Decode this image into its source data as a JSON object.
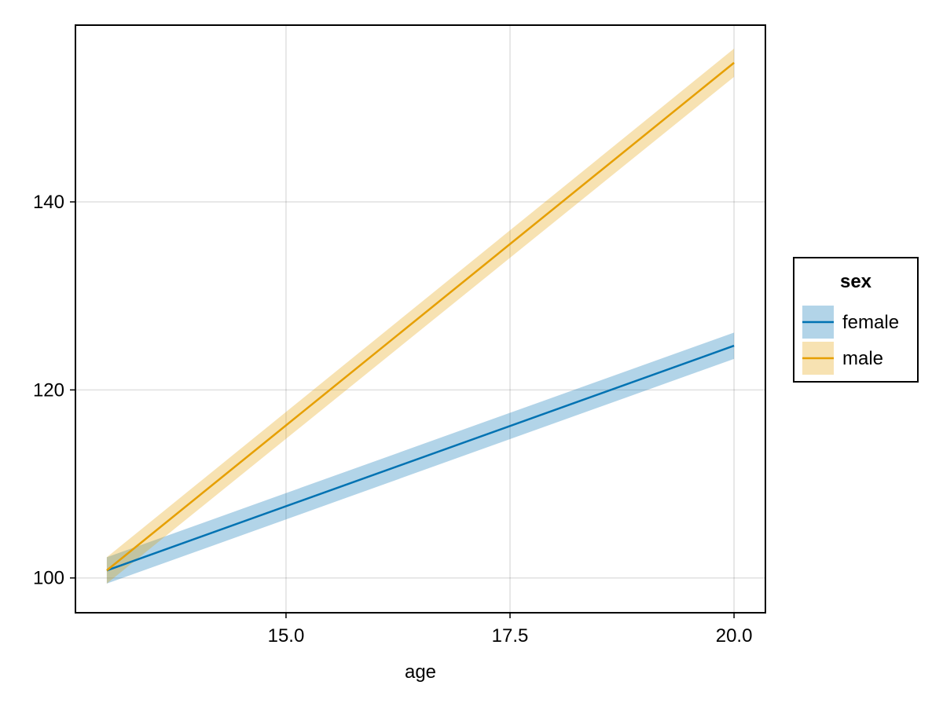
{
  "chart_data": {
    "type": "line",
    "title": "",
    "xlabel": "age",
    "ylabel": "",
    "xlim": [
      12.65,
      20.35
    ],
    "ylim": [
      96.3,
      158.8
    ],
    "xticks": [
      15.0,
      17.5,
      20.0
    ],
    "xtick_labels": [
      "15.0",
      "17.5",
      "20.0"
    ],
    "yticks": [
      100,
      120,
      140
    ],
    "ytick_labels": [
      "100",
      "120",
      "140"
    ],
    "grid": true,
    "legend": {
      "title": "sex",
      "placement": "right"
    },
    "series": [
      {
        "name": "female",
        "color": "#0072b2",
        "band_color": "#0072b2",
        "x": [
          13.0,
          20.0
        ],
        "y": [
          100.8,
          124.7
        ],
        "lower": [
          99.4,
          123.3
        ],
        "upper": [
          102.2,
          126.1
        ]
      },
      {
        "name": "male",
        "color": "#e69f00",
        "band_color": "#e69f00",
        "x": [
          13.0,
          20.0
        ],
        "y": [
          100.8,
          154.8
        ],
        "lower": [
          99.4,
          153.3
        ],
        "upper": [
          102.2,
          156.3
        ]
      }
    ]
  }
}
